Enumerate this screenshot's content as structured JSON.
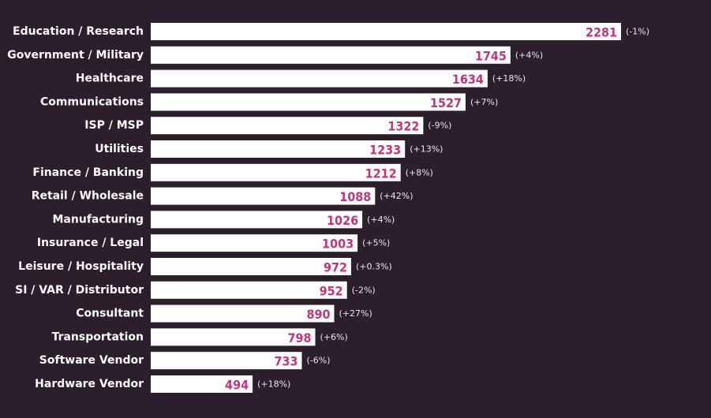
{
  "chart_data": {
    "type": "bar",
    "orientation": "horizontal",
    "categories": [
      "Education / Research",
      "Government / Military",
      "Healthcare",
      "Communications",
      "ISP / MSP",
      "Utilities",
      "Finance / Banking",
      "Retail / Wholesale",
      "Manufacturing",
      "Insurance / Legal",
      "Leisure / Hospitality",
      "SI / VAR / Distributor",
      "Consultant",
      "Transportation",
      "Software Vendor",
      "Hardware Vendor"
    ],
    "values": [
      2281,
      1745,
      1634,
      1527,
      1322,
      1233,
      1212,
      1088,
      1026,
      1003,
      972,
      952,
      890,
      798,
      733,
      494
    ],
    "changes": [
      "(-1%)",
      "(+4%)",
      "(+18%)",
      "(+7%)",
      "(-9%)",
      "(+13%)",
      "(+8%)",
      "(+42%)",
      "(+4%)",
      "(+5%)",
      "(+0.3%)",
      "(-2%)",
      "(+27%)",
      "(+6%)",
      "(-6%)",
      "(+18%)"
    ],
    "title": "",
    "xlabel": "",
    "ylabel": "",
    "xlim": [
      0,
      2281
    ],
    "grid": false,
    "legend": "none",
    "colors": {
      "background": "#2a1f2b",
      "bar": "#ffffff",
      "value_text": "#c2357d",
      "label_text": "#ffffff",
      "change_text": "#ece6ee"
    }
  }
}
